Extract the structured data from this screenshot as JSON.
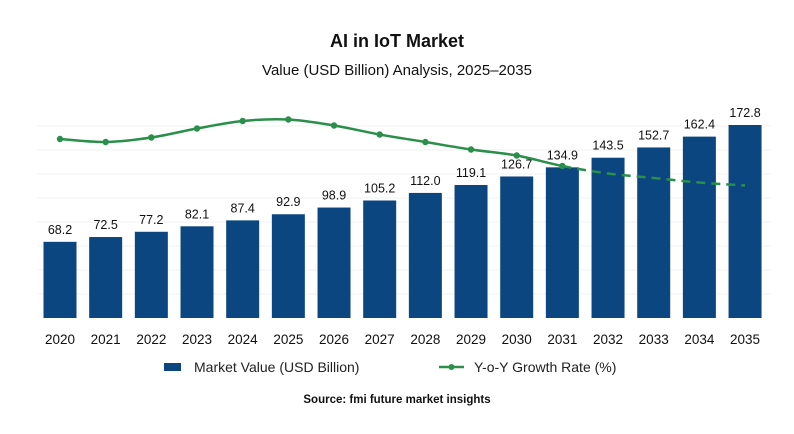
{
  "chart_data": {
    "type": "bar",
    "title": "AI in IoT Market",
    "subtitle": "Value (USD Billion) Analysis, 2025–2035",
    "source": "Source: fmi future market insights",
    "categories": [
      "2020",
      "2021",
      "2022",
      "2023",
      "2024",
      "2025",
      "2026",
      "2027",
      "2028",
      "2029",
      "2030",
      "2031",
      "2032",
      "2033",
      "2034",
      "2035"
    ],
    "series": [
      {
        "name": "Market Value (USD Billion)",
        "type": "bar",
        "color": "#0c4680",
        "values": [
          68.2,
          72.5,
          77.2,
          82.1,
          87.4,
          92.9,
          98.9,
          105.2,
          112.0,
          119.1,
          126.7,
          134.9,
          143.5,
          152.7,
          162.4,
          172.8
        ],
        "labels": [
          "68.2",
          "72.5",
          "77.2",
          "82.1",
          "87.4",
          "92.9",
          "98.9",
          "105.2",
          "112.0",
          "119.1",
          "126.7",
          "134.9",
          "143.5",
          "152.7",
          "162.4",
          "172.8"
        ]
      },
      {
        "name": "Y-o-Y Growth Rate (%)",
        "type": "line",
        "color": "#2a8f4a",
        "values": [
          7.0,
          6.8,
          7.1,
          7.7,
          8.2,
          8.3,
          7.9,
          7.3,
          6.8,
          6.3,
          5.9,
          5.2,
          4.7,
          4.4,
          4.1,
          3.9
        ],
        "forecast_from": "2031",
        "forecast_style": "dashed"
      }
    ],
    "ylim": [
      0,
      180
    ],
    "grid": true,
    "legend_position": "bottom"
  }
}
